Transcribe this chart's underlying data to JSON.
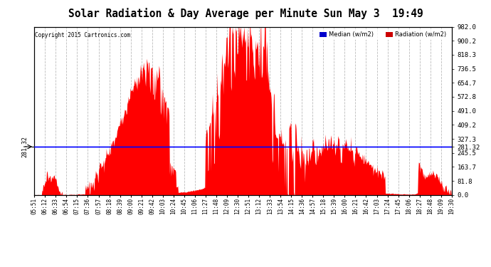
{
  "title": "Solar Radiation & Day Average per Minute Sun May 3  19:49",
  "copyright": "Copyright 2015 Cartronics.com",
  "median_value": 281.32,
  "ymax": 982.0,
  "ymin": 0.0,
  "yticks_right": [
    0.0,
    81.8,
    163.7,
    245.5,
    327.3,
    409.2,
    491.0,
    572.8,
    654.7,
    736.5,
    818.3,
    900.2,
    982.0
  ],
  "bg_color": "#ffffff",
  "grid_color": "#bbbbbb",
  "fill_color": "#ff0000",
  "line_color": "#0000ff",
  "xtick_labels": [
    "05:51",
    "06:12",
    "06:33",
    "06:54",
    "07:15",
    "07:36",
    "07:57",
    "08:18",
    "08:39",
    "09:00",
    "09:21",
    "09:42",
    "10:03",
    "10:24",
    "10:45",
    "11:06",
    "11:27",
    "11:48",
    "12:09",
    "12:30",
    "12:51",
    "13:12",
    "13:33",
    "13:54",
    "14:15",
    "14:36",
    "14:57",
    "15:18",
    "15:39",
    "16:00",
    "16:21",
    "16:42",
    "17:03",
    "17:24",
    "17:45",
    "18:06",
    "18:27",
    "18:48",
    "19:09",
    "19:30"
  ],
  "legend_median_bg": "#0000cc",
  "legend_radiation_bg": "#cc0000"
}
